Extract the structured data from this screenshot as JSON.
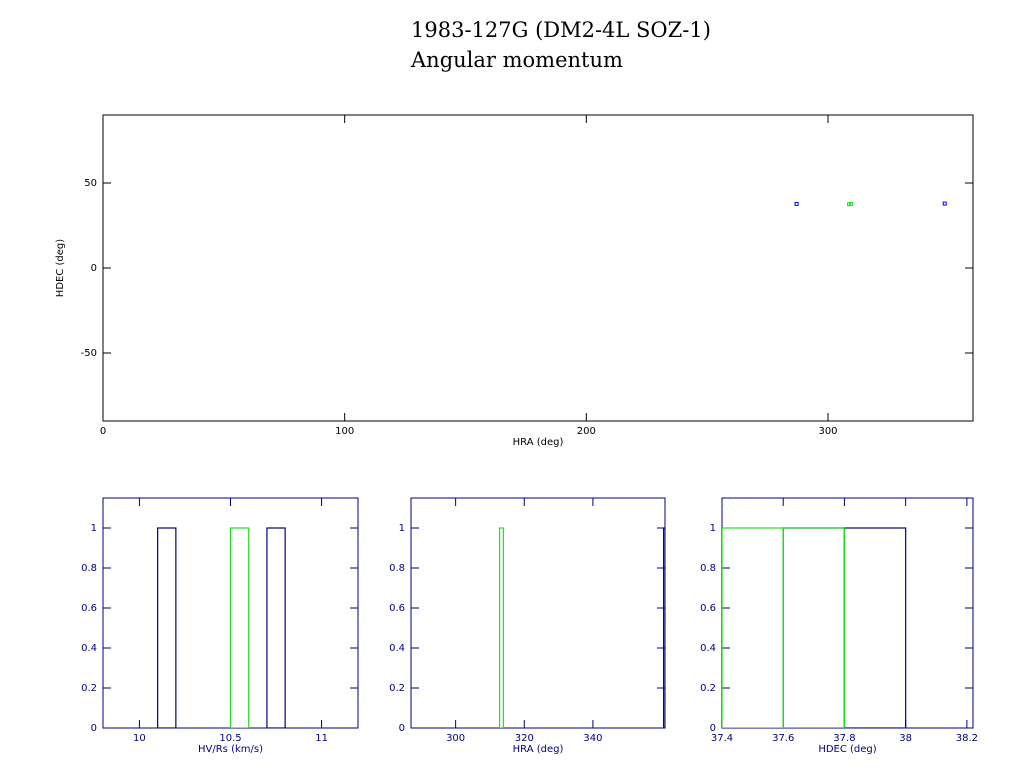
{
  "chart_data": [
    {
      "type": "scatter",
      "title": "1983-127G (DM2-4L SOZ-1)",
      "subtitle": "Angular momentum",
      "xlabel": "HRA (deg)",
      "ylabel": "HDEC (deg)",
      "axis_color": "#000000",
      "xlim": [
        0,
        360
      ],
      "ylim": [
        -90,
        90
      ],
      "xticks": [
        0,
        100,
        200,
        300
      ],
      "yticks": [
        -50,
        0,
        50
      ],
      "series": [
        {
          "color": "#0000ff",
          "x": [
            287,
            348.3
          ],
          "values": [
            37.7,
            37.9
          ]
        },
        {
          "color": "#22dd22",
          "x": [
            308.7,
            309.5
          ],
          "values": [
            37.5,
            37.7
          ]
        }
      ]
    },
    {
      "type": "histogram",
      "xlabel": "HV/Rs (km/s)",
      "axis_color": "#000080",
      "xlim": [
        9.8,
        11.2
      ],
      "ylim": [
        0,
        1.15
      ],
      "xticks": [
        10,
        10.5,
        11
      ],
      "yticks": [
        0,
        0.2,
        0.4,
        0.6,
        0.8,
        1
      ],
      "series": [
        {
          "color": "#000080",
          "bins": [
            10.1,
            10.2,
            10.3,
            10.4,
            10.5,
            10.6,
            10.7,
            10.8
          ],
          "values": [
            1,
            0,
            0,
            0,
            0,
            0,
            1
          ]
        },
        {
          "color": "#22dd22",
          "bins": [
            10.5,
            10.6
          ],
          "values": [
            1
          ]
        }
      ]
    },
    {
      "type": "histogram",
      "xlabel": "HRA (deg)",
      "axis_color": "#000080",
      "xlim": [
        287,
        361
      ],
      "ylim": [
        0,
        1.15
      ],
      "xticks": [
        300,
        320,
        340
      ],
      "yticks": [
        0,
        0.2,
        0.4,
        0.6,
        0.8,
        1
      ],
      "series": [
        {
          "color": "#000080",
          "bins": [
            360.6,
            361.6
          ],
          "values": [
            1
          ]
        },
        {
          "color": "#22dd22",
          "bins": [
            312.8,
            313.9
          ],
          "values": [
            1
          ]
        }
      ]
    },
    {
      "type": "histogram",
      "xlabel": "HDEC (deg)",
      "axis_color": "#000080",
      "xlim": [
        37.4,
        38.22
      ],
      "ylim": [
        0,
        1.15
      ],
      "xticks": [
        37.4,
        37.6,
        37.8,
        38,
        38.2
      ],
      "yticks": [
        0,
        0.2,
        0.4,
        0.6,
        0.8,
        1
      ],
      "series": [
        {
          "color": "#000080",
          "bins": [
            37.6,
            37.8,
            38.0
          ],
          "values": [
            1,
            1
          ]
        },
        {
          "color": "#22dd22",
          "bins": [
            37.4,
            37.6,
            37.8
          ],
          "values": [
            1,
            1
          ]
        }
      ]
    }
  ]
}
